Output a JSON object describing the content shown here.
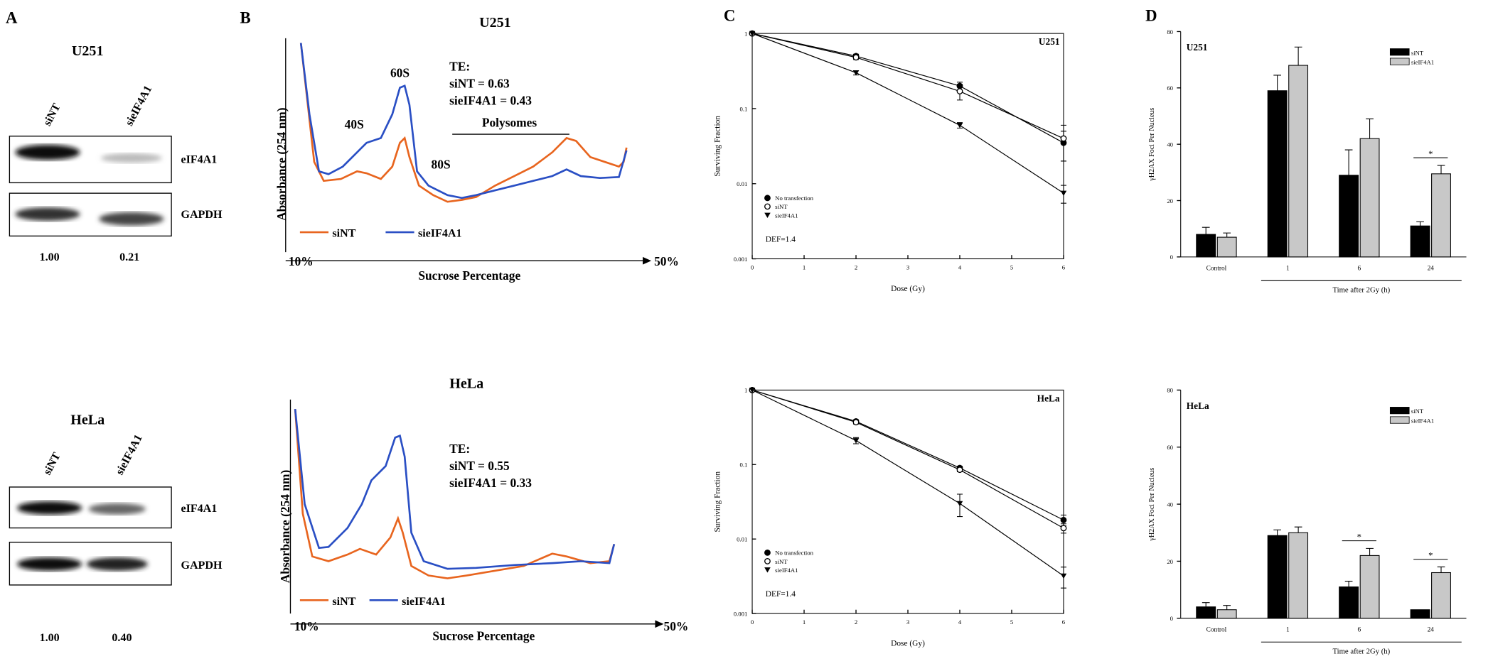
{
  "figure": {
    "panel_labels": [
      "A",
      "B",
      "C",
      "D"
    ],
    "blots": [
      {
        "title": "U251",
        "lanes": [
          "siNT",
          "sieIF4A1"
        ],
        "proteins": [
          "eIF4A1",
          "GAPDH"
        ],
        "quantification": [
          "1.00",
          "0.21"
        ]
      },
      {
        "title": "HeLa",
        "lanes": [
          "siNT",
          "sieIF4A1"
        ],
        "proteins": [
          "eIF4A1",
          "GAPDH"
        ],
        "quantification": [
          "1.00",
          "0.40"
        ]
      }
    ],
    "profiles": [
      {
        "title": "U251",
        "y_label": "Absorbance  (254 nm)",
        "x_label": "Sucrose Percentage",
        "x_start": "10%",
        "x_end": "50%",
        "te": [
          "TE:",
          "siNT = 0.63",
          "sieIF4A1 = 0.43"
        ],
        "peaks": [
          "40S",
          "60S",
          "80S",
          "Polysomes"
        ],
        "legend": [
          "siNT",
          "sieIF4A1"
        ],
        "colors": [
          "#e8651f",
          "#2a4fc4"
        ]
      },
      {
        "title": "HeLa",
        "y_label": "Absorbance  (254 nm)",
        "x_label": "Sucrose Percentage",
        "x_start": "10%",
        "x_end": "50%",
        "te": [
          "TE:",
          "siNT = 0.55",
          "sieIF4A1 = 0.33"
        ],
        "legend": [
          "siNT",
          "sieIF4A1"
        ],
        "colors": [
          "#e8651f",
          "#2a4fc4"
        ]
      }
    ]
  },
  "chart_data": [
    {
      "type": "line",
      "title": "U251",
      "x_label": "Dose (Gy)",
      "y_label": "Surviving Fraction",
      "annotation": "DEF=1.4",
      "x": [
        0,
        2,
        4,
        6
      ],
      "xlim": [
        0,
        6
      ],
      "xticks": [
        0,
        1,
        2,
        3,
        4,
        5,
        6
      ],
      "ylim": [
        0.001,
        1
      ],
      "yticks": [
        0.001,
        0.01,
        0.1,
        1
      ],
      "log_y": true,
      "legend": "lower left",
      "series": [
        {
          "name": "No transfection",
          "color": "#000000",
          "marker": "filled-circle",
          "values": [
            1,
            0.5,
            0.2,
            0.035
          ],
          "errors": [
            0,
            0.03,
            0.025,
            0.015
          ]
        },
        {
          "name": "siNT",
          "color": "#000000",
          "marker": "open-circle",
          "values": [
            1,
            0.48,
            0.17,
            0.04
          ],
          "errors": [
            0,
            0.03,
            0.04,
            0.02
          ]
        },
        {
          "name": "sieIF4A1",
          "color": "#000000",
          "marker": "filled-triangle",
          "values": [
            1,
            0.3,
            0.06,
            0.0075
          ],
          "errors": [
            0,
            0.02,
            0.005,
            0.002
          ]
        }
      ]
    },
    {
      "type": "bar",
      "title": "U251",
      "x_label": "Time after 2Gy (h)",
      "y_label": "γH2AX Foci Per Nucleus",
      "categories": [
        "Control",
        "1",
        "6",
        "24"
      ],
      "ylim": [
        0,
        80
      ],
      "yticks": [
        0,
        20,
        40,
        60,
        80
      ],
      "legend": "upper right",
      "significance_label": "*",
      "significant": [
        false,
        false,
        false,
        true
      ],
      "series": [
        {
          "name": "siNT",
          "color": "#000000",
          "values": [
            8,
            59,
            29,
            11
          ],
          "errors": [
            2.5,
            5.5,
            9,
            1.5
          ]
        },
        {
          "name": "sieIF4A1",
          "color": "#c8c8c8",
          "values": [
            7,
            68,
            42,
            29.5
          ],
          "errors": [
            1.5,
            6.5,
            7,
            3
          ]
        }
      ]
    },
    {
      "type": "line",
      "title": "HeLa",
      "x_label": "Dose (Gy)",
      "y_label": "Surviving Fraction",
      "annotation": "DEF=1.4",
      "x": [
        0,
        2,
        4,
        6
      ],
      "xlim": [
        0,
        6
      ],
      "xticks": [
        0,
        1,
        2,
        3,
        4,
        5,
        6
      ],
      "ylim": [
        0.001,
        1
      ],
      "yticks": [
        0.001,
        0.01,
        0.1,
        1
      ],
      "log_y": true,
      "legend": "lower left",
      "series": [
        {
          "name": "No transfection",
          "color": "#000000",
          "marker": "filled-circle",
          "values": [
            1,
            0.38,
            0.09,
            0.018
          ],
          "errors": [
            0,
            0.02,
            0.005,
            0.003
          ]
        },
        {
          "name": "siNT",
          "color": "#000000",
          "marker": "open-circle",
          "values": [
            1,
            0.37,
            0.085,
            0.014
          ],
          "errors": [
            0,
            0.02,
            0.005,
            0.002
          ]
        },
        {
          "name": "sieIF4A1",
          "color": "#000000",
          "marker": "filled-triangle",
          "values": [
            1,
            0.21,
            0.03,
            0.0032
          ],
          "errors": [
            0,
            0.02,
            0.01,
            0.001
          ]
        }
      ]
    },
    {
      "type": "bar",
      "title": "HeLa",
      "x_label": "Time after 2Gy (h)",
      "y_label": "γH2AX Foci Per Nucleus",
      "categories": [
        "Control",
        "1",
        "6",
        "24"
      ],
      "ylim": [
        0,
        80
      ],
      "yticks": [
        0,
        20,
        40,
        60,
        80
      ],
      "legend": "upper right",
      "significance_label": "*",
      "significant": [
        false,
        false,
        true,
        true
      ],
      "series": [
        {
          "name": "siNT",
          "color": "#000000",
          "values": [
            4,
            29,
            11,
            3
          ],
          "errors": [
            1.5,
            2,
            2,
            0
          ]
        },
        {
          "name": "sieIF4A1",
          "color": "#c8c8c8",
          "values": [
            3,
            30,
            22,
            16
          ],
          "errors": [
            1.5,
            2,
            2.5,
            2
          ]
        }
      ]
    }
  ]
}
